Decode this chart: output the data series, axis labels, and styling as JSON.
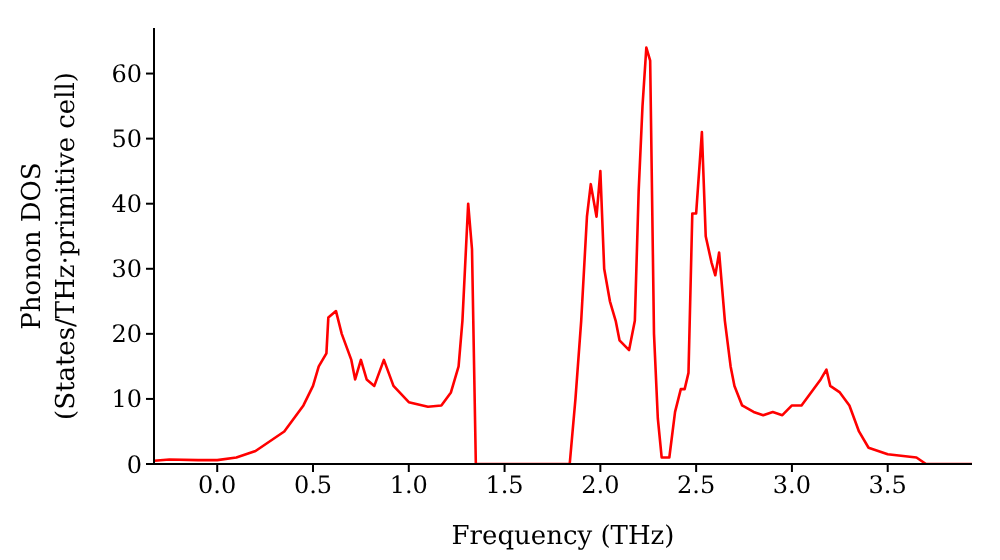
{
  "chart_data": {
    "type": "line",
    "xlabel": "Frequency (THz)",
    "ylabel": "Phonon DOS\n(States/THz·primitive cell)",
    "xlim": [
      -0.33,
      3.94
    ],
    "ylim": [
      0,
      67
    ],
    "xticks": [
      {
        "value": 0,
        "label": "0.0"
      },
      {
        "value": 0.5,
        "label": "0.5"
      },
      {
        "value": 1,
        "label": "1.0"
      },
      {
        "value": 1.5,
        "label": "1.5"
      },
      {
        "value": 2,
        "label": "2.0"
      },
      {
        "value": 2.5,
        "label": "2.5"
      },
      {
        "value": 3,
        "label": "3.0"
      },
      {
        "value": 3.5,
        "label": "3.5"
      }
    ],
    "yticks": [
      0,
      10,
      20,
      30,
      40,
      50,
      60
    ],
    "marker": "none",
    "line_style": "solid",
    "series": [
      {
        "color": "#ff0000",
        "x": [
          -0.33,
          -0.25,
          -0.1,
          0,
          0.1,
          0.2,
          0.3,
          0.35,
          0.4,
          0.45,
          0.5,
          0.53,
          0.57,
          0.58,
          0.62,
          0.65,
          0.7,
          0.72,
          0.75,
          0.78,
          0.82,
          0.87,
          0.92,
          1.0,
          1.1,
          1.17,
          1.22,
          1.26,
          1.28,
          1.31,
          1.33,
          1.35,
          1.84,
          1.87,
          1.9,
          1.93,
          1.95,
          1.98,
          2.0,
          2.02,
          2.05,
          2.08,
          2.1,
          2.15,
          2.18,
          2.2,
          2.22,
          2.24,
          2.26,
          2.28,
          2.3,
          2.32,
          2.36,
          2.39,
          2.42,
          2.44,
          2.46,
          2.48,
          2.5,
          2.53,
          2.55,
          2.58,
          2.6,
          2.62,
          2.65,
          2.68,
          2.7,
          2.74,
          2.8,
          2.85,
          2.9,
          2.95,
          3.0,
          3.05,
          3.1,
          3.15,
          3.18,
          3.2,
          3.25,
          3.3,
          3.35,
          3.4,
          3.5,
          3.65,
          3.7,
          3.94
        ],
        "values": [
          0.5,
          0.7,
          0.6,
          0.6,
          1,
          2,
          4,
          5,
          7,
          9,
          12,
          15,
          17,
          22.5,
          23.5,
          20,
          16,
          13,
          16,
          13,
          12,
          16,
          12,
          9.5,
          8.8,
          9,
          11,
          15,
          22,
          40,
          33,
          0,
          0,
          10,
          22,
          38,
          43,
          38,
          45,
          30,
          25,
          22,
          19,
          17.5,
          22,
          42,
          55,
          64,
          62,
          20,
          7,
          1,
          1,
          8,
          11.5,
          11.5,
          14,
          38.5,
          38.5,
          51,
          35,
          31,
          29,
          32.5,
          22,
          15,
          12,
          9,
          8,
          7.5,
          8,
          7.5,
          9,
          9,
          11,
          13,
          14.5,
          12,
          11,
          9,
          5,
          2.5,
          1.5,
          1,
          0,
          0
        ]
      }
    ]
  }
}
